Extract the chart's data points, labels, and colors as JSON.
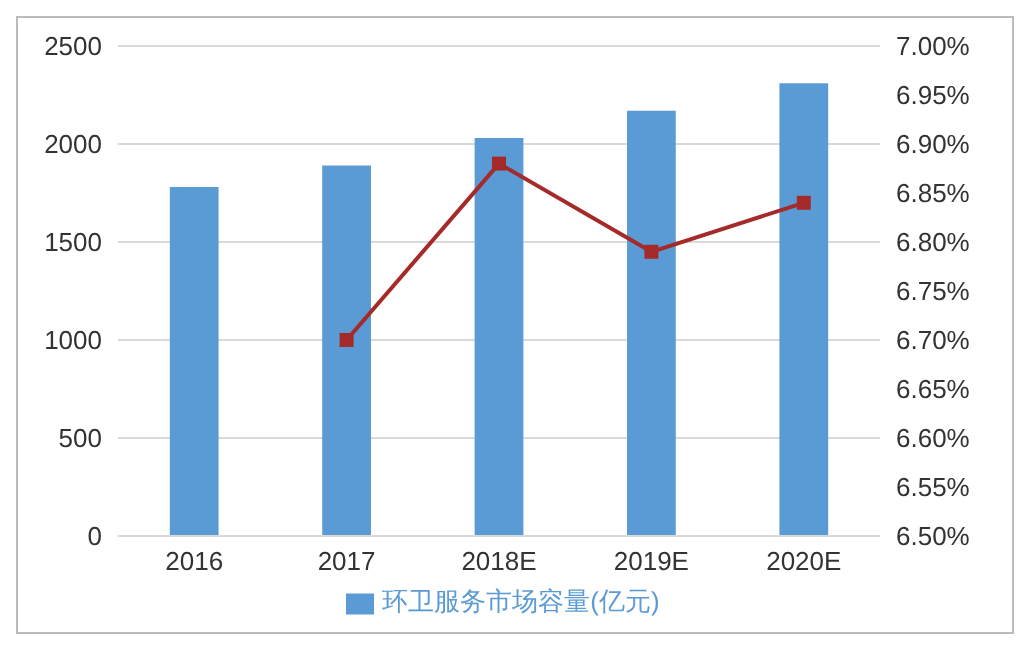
{
  "chart_data": {
    "type": "bar",
    "categories": [
      "2016",
      "2017",
      "2018E",
      "2019E",
      "2020E"
    ],
    "series": [
      {
        "name": "环卫服务市场容量(亿元)",
        "color": "#5b9bd5",
        "values": [
          1780,
          1890,
          2030,
          2170,
          2310
        ]
      },
      {
        "type": "line",
        "axis": "y2",
        "color": "#a52a2a",
        "values": [
          null,
          6.7,
          6.88,
          6.79,
          6.84
        ]
      }
    ],
    "ylim": [
      0,
      2500
    ],
    "yticks": [
      0,
      500,
      1000,
      1500,
      2000,
      2500
    ],
    "y2lim": [
      6.5,
      7.0
    ],
    "y2ticks": [
      {
        "value": 6.5,
        "label": "6.50%"
      },
      {
        "value": 6.55,
        "label": "6.55%"
      },
      {
        "value": 6.6,
        "label": "6.60%"
      },
      {
        "value": 6.65,
        "label": "6.65%"
      },
      {
        "value": 6.7,
        "label": "6.70%"
      },
      {
        "value": 6.75,
        "label": "6.75%"
      },
      {
        "value": 6.8,
        "label": "6.80%"
      },
      {
        "value": 6.85,
        "label": "6.85%"
      },
      {
        "value": 6.9,
        "label": "6.90%"
      },
      {
        "value": 6.95,
        "label": "6.95%"
      },
      {
        "value": 7.0,
        "label": "7.00%"
      }
    ],
    "grid": "y",
    "legend": "bottom",
    "marker": "square"
  }
}
